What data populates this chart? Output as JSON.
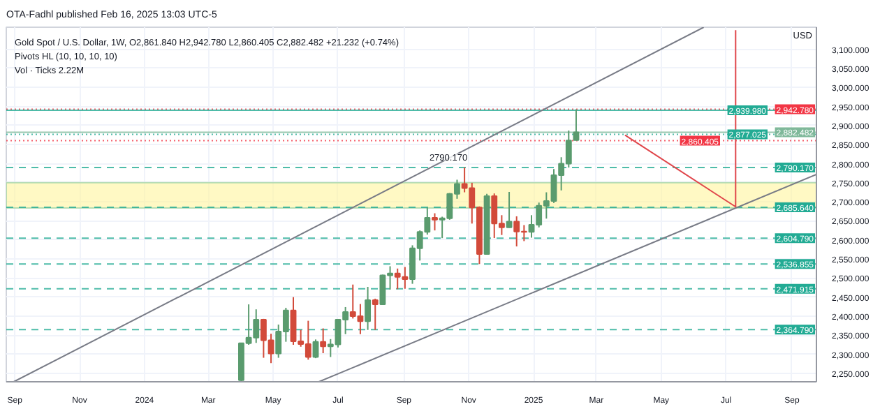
{
  "chart_data": {
    "type": "candlestick",
    "subtitle": "OTA-Fadhl published Feb 16, 2025 13:03 UTC-5",
    "title": "Gold Spot / U.S. Dollar, 1W, O2,861.840 H2,942.780 L2,860.405 C2,882.482 +21.232 (+0.74%)",
    "annotations": [
      "Pivots HL (10, 10, 10, 10)",
      "Vol · Ticks 2.22M",
      "USD",
      {
        "text": "2790.170",
        "x": "2024-10-28",
        "y": 2790.17
      }
    ],
    "x": [
      "2024-04-01",
      "2024-04-08",
      "2024-04-15",
      "2024-04-22",
      "2024-04-29",
      "2024-05-06",
      "2024-05-13",
      "2024-05-20",
      "2024-05-27",
      "2024-06-03",
      "2024-06-10",
      "2024-06-17",
      "2024-06-24",
      "2024-07-01",
      "2024-07-08",
      "2024-07-15",
      "2024-07-22",
      "2024-07-29",
      "2024-08-05",
      "2024-08-12",
      "2024-08-19",
      "2024-08-26",
      "2024-09-02",
      "2024-09-09",
      "2024-09-16",
      "2024-09-23",
      "2024-09-30",
      "2024-10-07",
      "2024-10-14",
      "2024-10-21",
      "2024-10-28",
      "2024-11-04",
      "2024-11-11",
      "2024-11-18",
      "2024-11-25",
      "2024-12-02",
      "2024-12-09",
      "2024-12-16",
      "2024-12-23",
      "2024-12-30",
      "2025-01-06",
      "2025-01-13",
      "2025-01-20",
      "2025-01-27",
      "2025-02-03",
      "2025-02-10"
    ],
    "ohlc": [
      [
        2232,
        2330,
        2228,
        2329
      ],
      [
        2329,
        2431,
        2325,
        2344
      ],
      [
        2344,
        2418,
        2330,
        2391
      ],
      [
        2391,
        2393,
        2291,
        2337
      ],
      [
        2337,
        2354,
        2277,
        2302
      ],
      [
        2302,
        2378,
        2291,
        2360
      ],
      [
        2360,
        2422,
        2333,
        2415
      ],
      [
        2415,
        2450,
        2325,
        2334
      ],
      [
        2334,
        2364,
        2320,
        2327
      ],
      [
        2327,
        2388,
        2286,
        2293
      ],
      [
        2293,
        2339,
        2290,
        2333
      ],
      [
        2333,
        2368,
        2303,
        2321
      ],
      [
        2321,
        2340,
        2293,
        2326
      ],
      [
        2326,
        2392,
        2318,
        2391
      ],
      [
        2391,
        2424,
        2353,
        2411
      ],
      [
        2411,
        2483,
        2394,
        2400
      ],
      [
        2400,
        2432,
        2353,
        2387
      ],
      [
        2387,
        2477,
        2364,
        2442
      ],
      [
        2442,
        2446,
        2364,
        2431
      ],
      [
        2431,
        2509,
        2430,
        2507
      ],
      [
        2507,
        2531,
        2470,
        2512
      ],
      [
        2512,
        2525,
        2471,
        2503
      ],
      [
        2503,
        2529,
        2472,
        2497
      ],
      [
        2497,
        2586,
        2485,
        2578
      ],
      [
        2578,
        2625,
        2546,
        2621
      ],
      [
        2621,
        2685,
        2614,
        2658
      ],
      [
        2658,
        2670,
        2625,
        2653
      ],
      [
        2653,
        2661,
        2604.79,
        2657
      ],
      [
        2657,
        2723,
        2653,
        2721
      ],
      [
        2721,
        2758,
        2708,
        2747
      ],
      [
        2747,
        2790.17,
        2725,
        2736
      ],
      [
        2736,
        2750,
        2643,
        2685
      ],
      [
        2685,
        2688,
        2536.855,
        2563
      ],
      [
        2563,
        2721,
        2563,
        2715
      ],
      [
        2715,
        2722,
        2605,
        2643
      ],
      [
        2643,
        2665,
        2613,
        2633
      ],
      [
        2633,
        2726,
        2632,
        2648
      ],
      [
        2648,
        2662,
        2583,
        2622
      ],
      [
        2622,
        2639,
        2597,
        2621
      ],
      [
        2621,
        2665,
        2606,
        2640
      ],
      [
        2640,
        2698,
        2633,
        2690
      ],
      [
        2690,
        2725,
        2656,
        2702
      ],
      [
        2702,
        2786,
        2697,
        2770
      ],
      [
        2770,
        2817,
        2730,
        2800
      ],
      [
        2800,
        2887,
        2790,
        2861
      ],
      [
        2861.84,
        2942.78,
        2860.405,
        2882.482
      ]
    ],
    "colors": [
      "#5a9b6e",
      "#5a9b6e",
      "#5a9b6e",
      "#d24a3a",
      "#d24a3a",
      "#5a9b6e",
      "#5a9b6e",
      "#d24a3a",
      "#d24a3a",
      "#d24a3a",
      "#5a9b6e",
      "#d24a3a",
      "#5a9b6e",
      "#5a9b6e",
      "#5a9b6e",
      "#d24a3a",
      "#d24a3a",
      "#5a9b6e",
      "#d24a3a",
      "#5a9b6e",
      "#5a9b6e",
      "#d24a3a",
      "#d24a3a",
      "#5a9b6e",
      "#5a9b6e",
      "#5a9b6e",
      "#d24a3a",
      "#5a9b6e",
      "#5a9b6e",
      "#5a9b6e",
      "#d24a3a",
      "#d24a3a",
      "#d24a3a",
      "#5a9b6e",
      "#d24a3a",
      "#d24a3a",
      "#5a9b6e",
      "#d24a3a",
      "#d24a3a",
      "#5a9b6e",
      "#5a9b6e",
      "#5a9b6e",
      "#5a9b6e",
      "#5a9b6e",
      "#5a9b6e",
      "#5a9b6e"
    ],
    "series": [
      {
        "type": "line",
        "color": "#787b86",
        "x": [
          "2023-08-31",
          "2025-06-10"
        ],
        "values": [
          2228,
          3158
        ]
      },
      {
        "type": "line",
        "color": "#787b86",
        "x": [
          "2024-06-13",
          "2025-09-24"
        ],
        "values": [
          2228,
          2772
        ]
      },
      {
        "type": "line",
        "color": "#e0464b",
        "x": [
          "2025-03-28",
          "2025-07-10",
          "2025-07-10"
        ],
        "values": [
          2875,
          2687,
          3150
        ]
      }
    ],
    "bands": [
      {
        "axis": "y",
        "from": 2684,
        "to": 2750,
        "color": "#fff59d"
      }
    ],
    "ref_lines": [
      {
        "axis": "y",
        "value": 2942.78,
        "label": "2,942.780",
        "color": "#f23645",
        "line_style": "dotted"
      },
      {
        "axis": "y",
        "value": 2939.98,
        "label": "2,939.980",
        "color": "#22ab94",
        "line_style": "solid"
      },
      {
        "axis": "y",
        "value": 2882.482,
        "label": "2,882.482",
        "color": "#7fb89a",
        "line_style": "solid"
      },
      {
        "axis": "y",
        "value": 2877.025,
        "label": "2,877.025",
        "color": "#22ab94",
        "line_style": "dotted"
      },
      {
        "axis": "y",
        "value": 2860.405,
        "label": "2,860.405",
        "color": "#f23645",
        "line_style": "dotted"
      },
      {
        "axis": "y",
        "value": 2790.17,
        "label": "2,790.170",
        "color": "#22ab94",
        "line_style": "dashed"
      },
      {
        "axis": "y",
        "value": 2685.64,
        "label": "2,685.640",
        "color": "#22ab94",
        "line_style": "dashed"
      },
      {
        "axis": "y",
        "value": 2604.79,
        "label": "2,604.790",
        "color": "#22ab94",
        "line_style": "dashed"
      },
      {
        "axis": "y",
        "value": 2536.855,
        "label": "2,536.855",
        "color": "#22ab94",
        "line_style": "dashed"
      },
      {
        "axis": "y",
        "value": 2471.915,
        "label": "2,471.915",
        "color": "#22ab94",
        "line_style": "dashed"
      },
      {
        "axis": "y",
        "value": 2364.79,
        "label": "2,364.790",
        "color": "#22ab94",
        "line_style": "dashed"
      }
    ],
    "xlim": [
      "2023-08-24",
      "2025-09-24"
    ],
    "xticks": [
      {
        "value": "2023-09-01",
        "label": "Sep"
      },
      {
        "value": "2023-11-01",
        "label": "Nov"
      },
      {
        "value": "2024-01-01",
        "label": "2024"
      },
      {
        "value": "2024-03-01",
        "label": "Mar"
      },
      {
        "value": "2024-05-01",
        "label": "May"
      },
      {
        "value": "2024-07-01",
        "label": "Jul"
      },
      {
        "value": "2024-09-01",
        "label": "Sep"
      },
      {
        "value": "2024-11-01",
        "label": "Nov"
      },
      {
        "value": "2025-01-01",
        "label": "2025"
      },
      {
        "value": "2025-03-01",
        "label": "Mar"
      },
      {
        "value": "2025-05-01",
        "label": "May"
      },
      {
        "value": "2025-07-01",
        "label": "Jul"
      },
      {
        "value": "2025-09-01",
        "label": "Sep"
      }
    ],
    "ylim": [
      2228,
      3158
    ],
    "yticks": [
      {
        "value": 2250,
        "label": "2,250.000"
      },
      {
        "value": 2300,
        "label": "2,300.000"
      },
      {
        "value": 2350,
        "label": "2,350.000"
      },
      {
        "value": 2400,
        "label": "2,400.000"
      },
      {
        "value": 2450,
        "label": "2,450.000"
      },
      {
        "value": 2500,
        "label": "2,500.000"
      },
      {
        "value": 2550,
        "label": "2,550.000"
      },
      {
        "value": 2600,
        "label": "2,600.000"
      },
      {
        "value": 2650,
        "label": "2,650.000"
      },
      {
        "value": 2700,
        "label": "2,700.000"
      },
      {
        "value": 2750,
        "label": "2,750.000"
      },
      {
        "value": 2800,
        "label": "2,800.000"
      },
      {
        "value": 2850,
        "label": "2,850.000"
      },
      {
        "value": 2900,
        "label": "2,900.000"
      },
      {
        "value": 2950,
        "label": "2,950.000"
      },
      {
        "value": 3000,
        "label": "3,000.000"
      },
      {
        "value": 3050,
        "label": "3,050.000"
      },
      {
        "value": 3100,
        "label": "3,100.000"
      }
    ],
    "grid": true
  }
}
